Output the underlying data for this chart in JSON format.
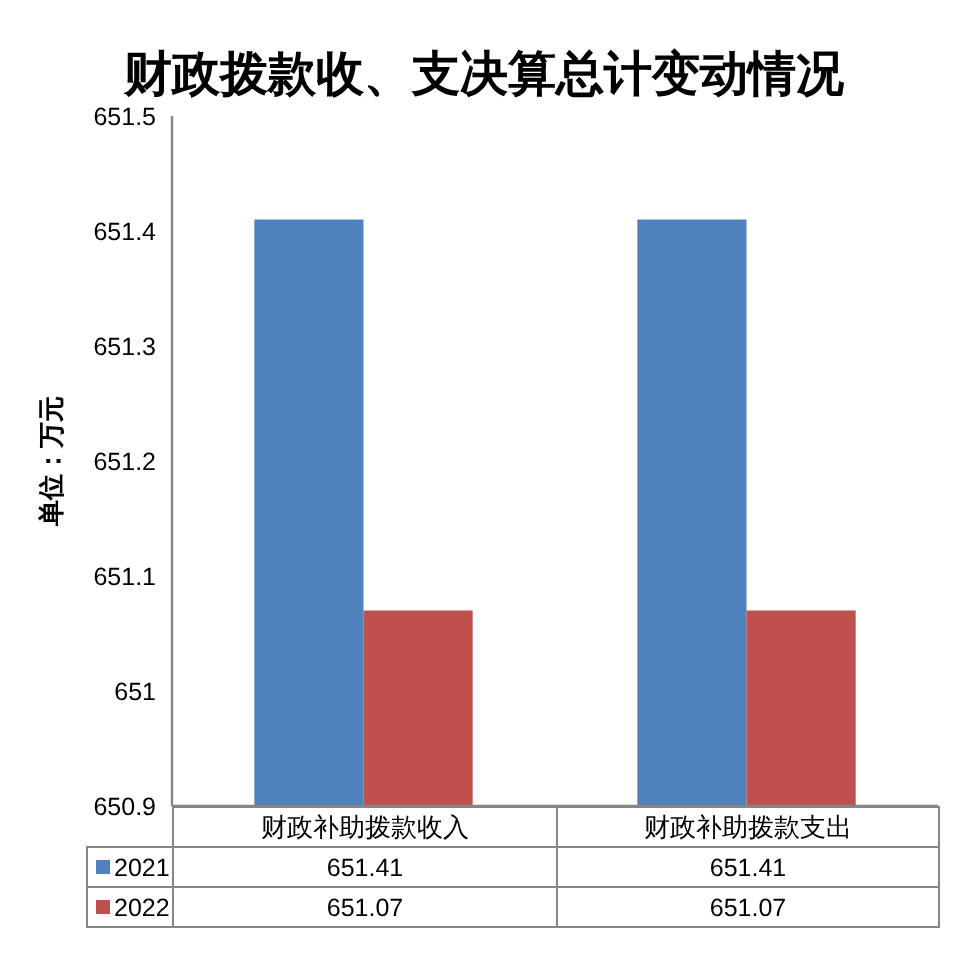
{
  "chart_data": {
    "type": "bar",
    "title": "财政拨款收、支决算总计变动情况",
    "ylabel": "单位：万元",
    "categories": [
      "财政补助拨款收入",
      "财政补助拨款支出"
    ],
    "series": [
      {
        "name": "2021",
        "color": "#4f81bd",
        "values": [
          651.41,
          651.41
        ]
      },
      {
        "name": "2022",
        "color": "#c0504d",
        "values": [
          651.07,
          651.07
        ]
      }
    ],
    "ylim": [
      650.9,
      651.5
    ],
    "yticks": [
      650.9,
      651,
      651.1,
      651.2,
      651.3,
      651.4,
      651.5
    ],
    "data_labels": true,
    "legend": "bottom"
  }
}
